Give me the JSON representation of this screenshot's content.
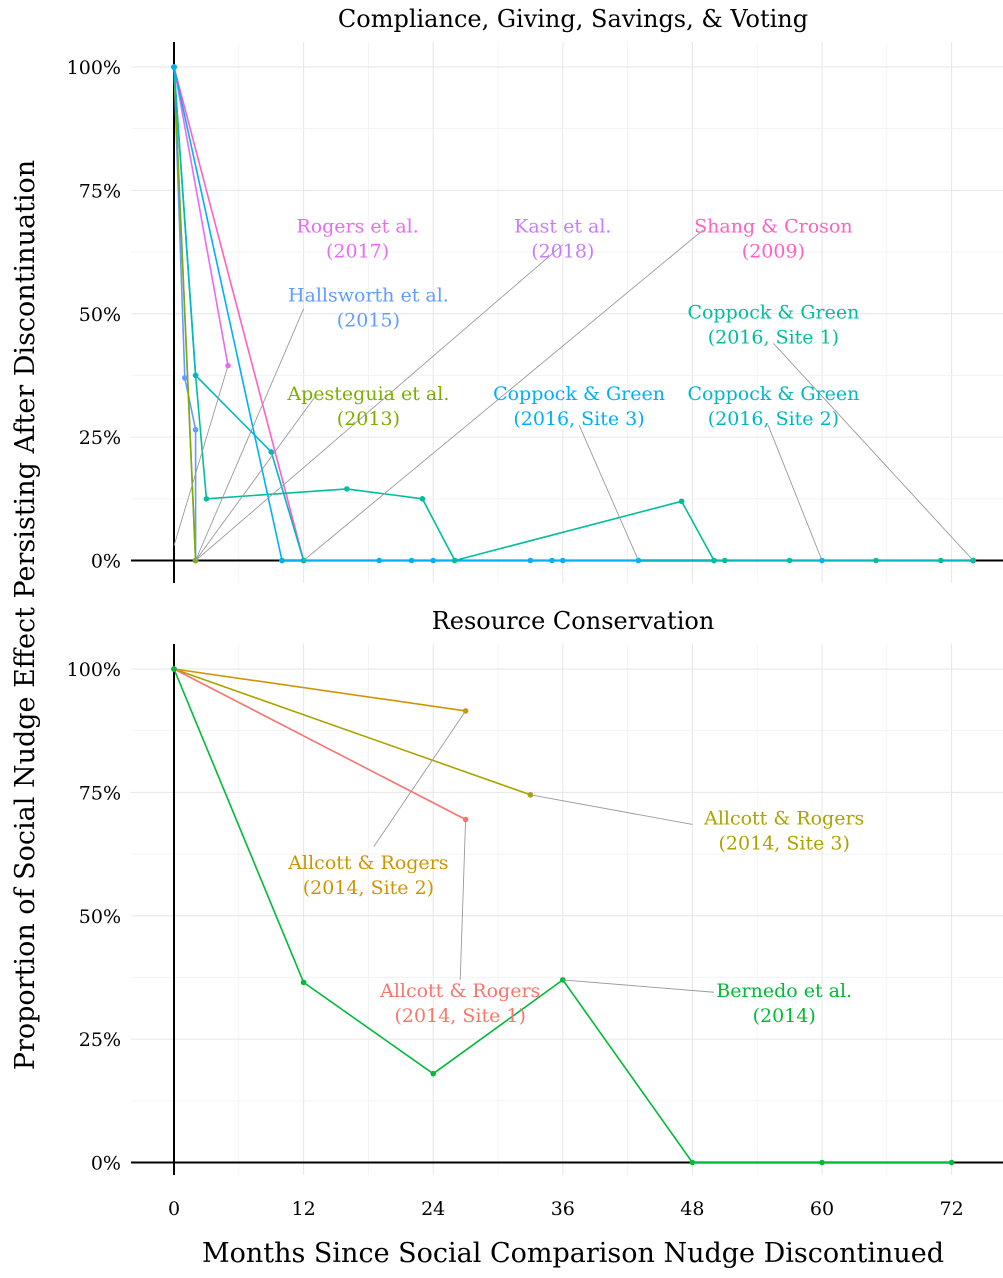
{
  "chart_data": {
    "type": "line",
    "xlabel": "Months Since Social Comparison Nudge Discontinued",
    "ylabel": "Proportion of Social Nudge Effect Persisting After Discontinuation",
    "x_ticks": [
      0,
      12,
      24,
      36,
      48,
      60,
      72
    ],
    "y_ticks": [
      "0%",
      "25%",
      "50%",
      "75%",
      "100%"
    ],
    "xlim": [
      -4,
      77
    ],
    "ylim": [
      0,
      100
    ],
    "grid": true,
    "panels": [
      {
        "title": "Compliance, Giving, Savings, & Voting",
        "series": [
          {
            "name": "Rogers et al. (2017)",
            "label_lines": [
              "Rogers et al.",
              "(2017)"
            ],
            "color": "#E76BF3",
            "points": [
              [
                0,
                100
              ],
              [
                5,
                39.5
              ]
            ]
          },
          {
            "name": "Kast et al. (2018)",
            "label_lines": [
              "Kast et al.",
              "(2018)"
            ],
            "color": "#C77CFF",
            "points": [
              [
                0,
                100
              ],
              [
                2,
                0
              ]
            ]
          },
          {
            "name": "Shang & Croson (2009)",
            "label_lines": [
              "Shang & Croson",
              "(2009)"
            ],
            "color": "#FF61C3",
            "points": [
              [
                0,
                100
              ],
              [
                12,
                0
              ]
            ]
          },
          {
            "name": "Hallsworth et al. (2015)",
            "label_lines": [
              "Hallsworth et al.",
              "(2015)"
            ],
            "color": "#619CFF",
            "points": [
              [
                0,
                100
              ],
              [
                1,
                37
              ],
              [
                2,
                26.5
              ],
              [
                2,
                0
              ]
            ]
          },
          {
            "name": "Apesteguia et al. (2013)",
            "label_lines": [
              "Apesteguia et al.",
              "(2013)"
            ],
            "color": "#7CAE00",
            "points": [
              [
                0,
                100
              ],
              [
                2,
                0
              ]
            ]
          },
          {
            "name": "Coppock & Green (2016, Site 1)",
            "label_lines": [
              "Coppock & Green",
              "(2016, Site 1)"
            ],
            "color": "#00BE9B",
            "points": [
              [
                0,
                100
              ],
              [
                2,
                37.5
              ],
              [
                3,
                12.5
              ],
              [
                16,
                14.5
              ],
              [
                23,
                12.5
              ],
              [
                26,
                0
              ],
              [
                47,
                12
              ],
              [
                50,
                0
              ],
              [
                74,
                0
              ]
            ]
          },
          {
            "name": "Coppock & Green (2016, Site 2)",
            "label_lines": [
              "Coppock & Green",
              "(2016, Site 2)"
            ],
            "color": "#00B8C4",
            "points": [
              [
                0,
                100
              ],
              [
                2,
                37.5
              ],
              [
                9,
                22
              ],
              [
                12,
                0
              ],
              [
                74,
                0
              ]
            ]
          },
          {
            "name": "Coppock & Green (2016, Site 3)",
            "label_lines": [
              "Coppock & Green",
              "(2016, Site 3)"
            ],
            "color": "#00B0F6",
            "points": [
              [
                0,
                100
              ],
              [
                10,
                0
              ],
              [
                43,
                0
              ]
            ]
          }
        ],
        "extra_points": [
          {
            "color": "#00BE9B",
            "points": [
              [
                12,
                0
              ],
              [
                26,
                0
              ],
              [
                50,
                0
              ],
              [
                51,
                0
              ],
              [
                57,
                0
              ],
              [
                65,
                0
              ],
              [
                71,
                0
              ],
              [
                74,
                0
              ]
            ]
          },
          {
            "color": "#00B0F6",
            "points": [
              [
                10,
                0
              ],
              [
                19,
                0
              ],
              [
                22,
                0
              ],
              [
                24,
                0
              ],
              [
                33,
                0
              ],
              [
                35,
                0
              ],
              [
                36,
                0
              ],
              [
                43,
                0
              ],
              [
                60,
                0
              ]
            ]
          }
        ],
        "labels": [
          {
            "series": 0,
            "x": 17,
            "y": 66.5,
            "color": "#E76BF3",
            "anchor": [
              0,
              3
            ],
            "tip": [
              5,
              39.5
            ]
          },
          {
            "series": 1,
            "x": 36,
            "y": 66.5,
            "color": "#C77CFF",
            "anchor": [
              36,
              64
            ],
            "tip": [
              2,
              0
            ]
          },
          {
            "series": 2,
            "x": 55.5,
            "y": 66.5,
            "color": "#FF61C3",
            "anchor": [
              49,
              67
            ],
            "tip": [
              12,
              0
            ]
          },
          {
            "series": 3,
            "x": 18,
            "y": 52.5,
            "color": "#619CFF",
            "anchor": [
              12,
              51
            ],
            "tip": [
              2,
              0
            ]
          },
          {
            "series": 4,
            "x": 18,
            "y": 32.5,
            "color": "#7CAE00",
            "anchor": [
              13,
              33
            ],
            "tip": [
              2,
              0
            ]
          },
          {
            "series": 5,
            "x": 55.5,
            "y": 49,
            "color": "#00BE9B",
            "anchor": [
              55.5,
              44
            ],
            "tip": [
              74,
              0
            ]
          },
          {
            "series": 6,
            "x": 55.5,
            "y": 32.5,
            "color": "#00B8C4",
            "anchor": [
              55,
              27.5
            ],
            "tip": [
              60,
              0
            ]
          },
          {
            "series": 7,
            "x": 37.5,
            "y": 32.5,
            "color": "#00B0F6",
            "anchor": [
              37.5,
              27.5
            ],
            "tip": [
              43,
              0
            ]
          }
        ]
      },
      {
        "title": "Resource Conservation",
        "series": [
          {
            "name": "Allcott & Rogers (2014, Site 2)",
            "label_lines": [
              "Allcott & Rogers",
              "(2014, Site 2)"
            ],
            "color": "#CD9600",
            "points": [
              [
                0,
                100
              ],
              [
                27,
                91.5
              ]
            ]
          },
          {
            "name": "Allcott & Rogers (2014, Site 3)",
            "label_lines": [
              "Allcott & Rogers",
              "(2014, Site 3)"
            ],
            "color": "#ABA300",
            "points": [
              [
                0,
                100
              ],
              [
                33,
                74.5
              ]
            ]
          },
          {
            "name": "Allcott & Rogers (2014, Site 1)",
            "label_lines": [
              "Allcott & Rogers",
              "(2014, Site 1)"
            ],
            "color": "#F8766D",
            "points": [
              [
                0,
                100
              ],
              [
                27,
                69.5
              ]
            ]
          },
          {
            "name": "Bernedo et al. (2014)",
            "label_lines": [
              "Bernedo et al.",
              "(2014)"
            ],
            "color": "#00BA38",
            "points": [
              [
                0,
                100
              ],
              [
                12,
                36.5
              ],
              [
                24,
                18
              ],
              [
                36,
                37
              ],
              [
                48,
                0
              ],
              [
                60,
                0
              ],
              [
                72,
                0
              ]
            ]
          }
        ],
        "extra_points": [],
        "labels": [
          {
            "series": 0,
            "x": 18,
            "y": 59.5,
            "color": "#CD9600",
            "anchor": [
              18.5,
              64
            ],
            "tip": [
              27,
              91.5
            ]
          },
          {
            "series": 1,
            "x": 56.5,
            "y": 68.5,
            "color": "#ABA300",
            "anchor": [
              48,
              68.5
            ],
            "tip": [
              33,
              74.5
            ]
          },
          {
            "series": 2,
            "x": 26.5,
            "y": 33.5,
            "color": "#F8766D",
            "anchor": [
              26.5,
              37
            ],
            "tip": [
              27,
              69.5
            ]
          },
          {
            "series": 3,
            "x": 56.5,
            "y": 33.5,
            "color": "#00BA38",
            "anchor": [
              50,
              34.5
            ],
            "tip": [
              36,
              37
            ]
          }
        ]
      }
    ]
  }
}
